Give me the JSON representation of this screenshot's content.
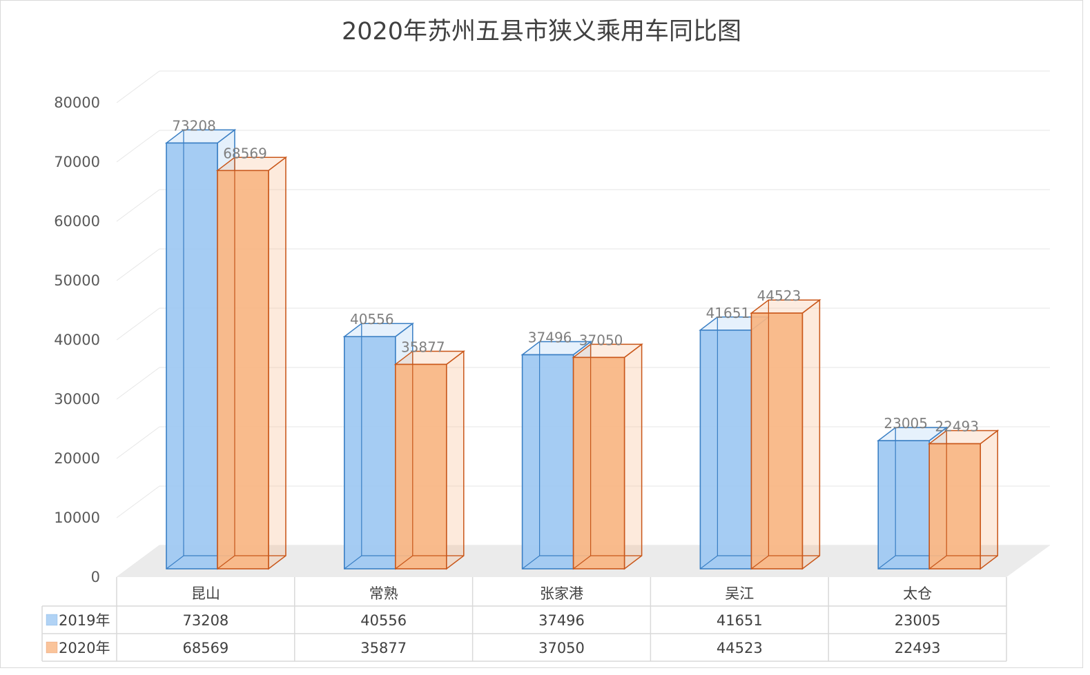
{
  "chart_data": {
    "type": "bar",
    "title": "2020年苏州五县市狭义乘用车同比图",
    "xlabel": "",
    "ylabel": "",
    "categories": [
      "昆山",
      "常熟",
      "张家港",
      "吴江",
      "太仓"
    ],
    "series": [
      {
        "name": "2019年",
        "values": [
          73208,
          40556,
          37496,
          41651,
          23005
        ],
        "color": "#9dc8f2",
        "edge": "#3a7fc4"
      },
      {
        "name": "2020年",
        "values": [
          68569,
          35877,
          37050,
          44523,
          22493
        ],
        "color": "#f9b582",
        "edge": "#c9571a"
      }
    ],
    "ylim": [
      0,
      80000
    ],
    "yticks": [
      "0",
      "10000",
      "20000",
      "30000",
      "40000",
      "50000",
      "60000",
      "70000",
      "80000"
    ],
    "grid": true,
    "legend": "data-table"
  }
}
